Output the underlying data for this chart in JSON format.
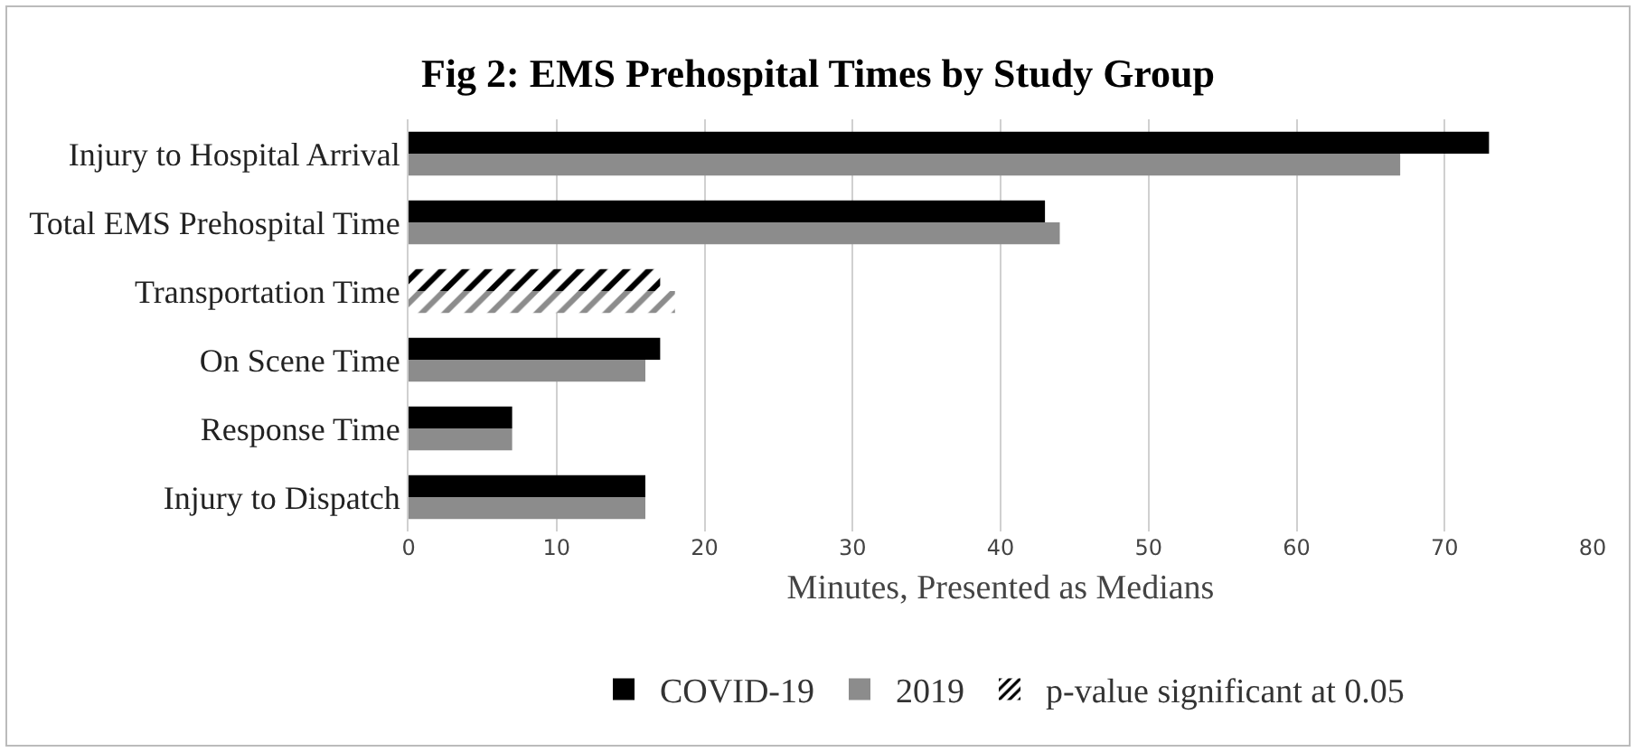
{
  "chart_data": {
    "type": "bar",
    "orientation": "horizontal",
    "title": "Fig 2: EMS Prehospital Times by Study Group",
    "xlabel": "Minutes, Presented as Medians",
    "categories": [
      "Injury to Hospital Arrival",
      "Total EMS Prehospital Time",
      "Transportation Time",
      "On Scene Time",
      "Response Time",
      "Injury to Dispatch"
    ],
    "series": [
      {
        "name": "COVID-19",
        "color": "#000000",
        "values": [
          73,
          43,
          null,
          17,
          7,
          16
        ]
      },
      {
        "name": "2019",
        "color": "#8c8c8c",
        "values": [
          67,
          44,
          null,
          16,
          7,
          16
        ]
      },
      {
        "color": "#000000",
        "values": [
          null,
          null,
          17,
          null,
          null,
          null
        ],
        "line_style": "dashed"
      },
      {
        "color": "#8c8c8c",
        "values": [
          null,
          null,
          18,
          null,
          null,
          null
        ],
        "line_style": "dashed"
      }
    ],
    "annotations": [
      "p-value significant at 0.05"
    ],
    "xlim": [
      0,
      80
    ],
    "xticks": [
      0,
      10,
      20,
      30,
      40,
      50,
      60,
      70,
      80
    ],
    "grid": "x",
    "legend": "bottom"
  }
}
